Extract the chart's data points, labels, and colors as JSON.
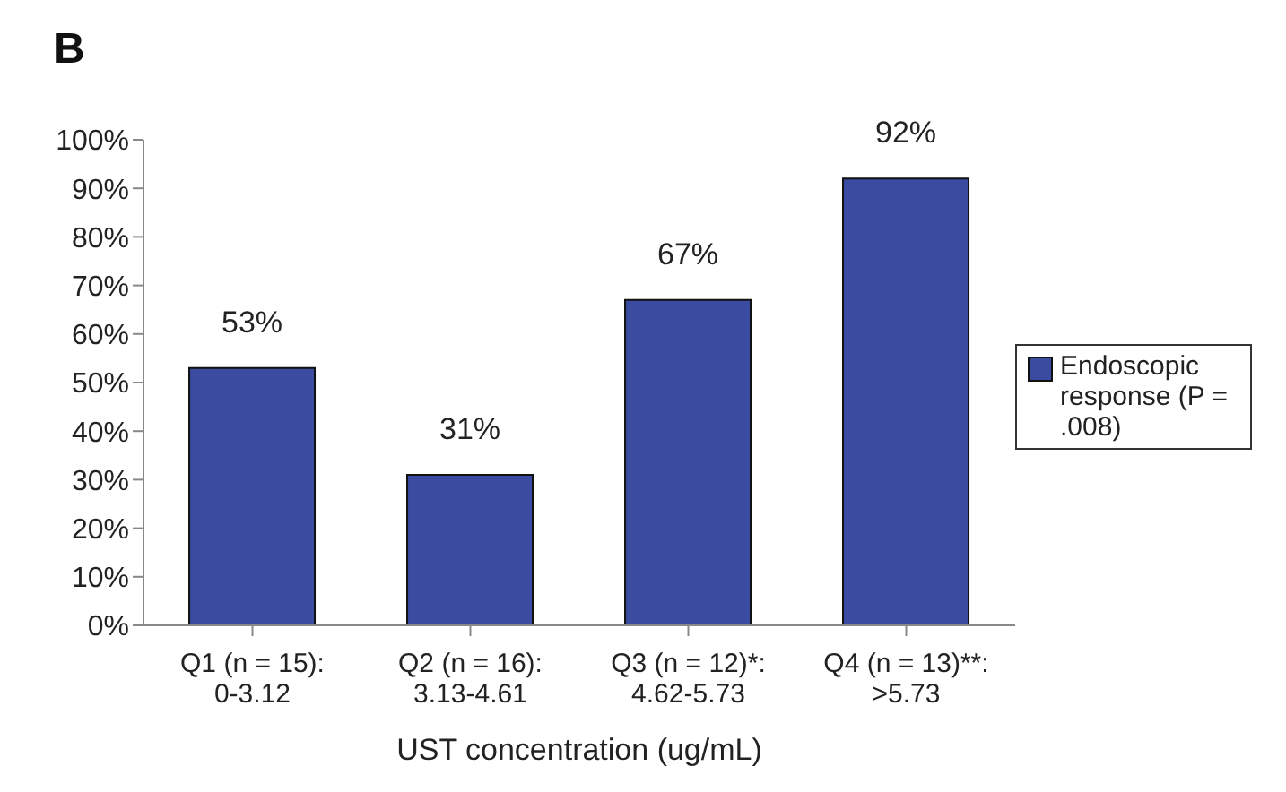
{
  "chart_data": {
    "type": "bar",
    "title": "B",
    "xlabel": "UST concentration (ug/mL)",
    "categories": [
      "Q1 (n = 15):\n0-3.12",
      "Q2 (n = 16):\n3.13-4.61",
      "Q3 (n = 12)*:\n4.62-5.73",
      "Q4 (n = 13)**:\n>5.73"
    ],
    "series": [
      {
        "name": "Endoscopic response (P = .008)",
        "color": "#3a4ba0",
        "values": [
          53,
          31,
          67,
          92
        ],
        "value_labels": [
          "53%",
          "31%",
          "67%",
          "92%"
        ]
      }
    ],
    "ylim": [
      0,
      100
    ],
    "yticks": [
      {
        "value": 0,
        "label": "0%"
      },
      {
        "value": 10,
        "label": "10%"
      },
      {
        "value": 20,
        "label": "20%"
      },
      {
        "value": 30,
        "label": "30%"
      },
      {
        "value": 40,
        "label": "40%"
      },
      {
        "value": 50,
        "label": "50%"
      },
      {
        "value": 60,
        "label": "60%"
      },
      {
        "value": 70,
        "label": "70%"
      },
      {
        "value": 80,
        "label": "80%"
      },
      {
        "value": 90,
        "label": "90%"
      },
      {
        "value": 100,
        "label": "100%"
      }
    ],
    "grid": false,
    "legend": "right"
  }
}
